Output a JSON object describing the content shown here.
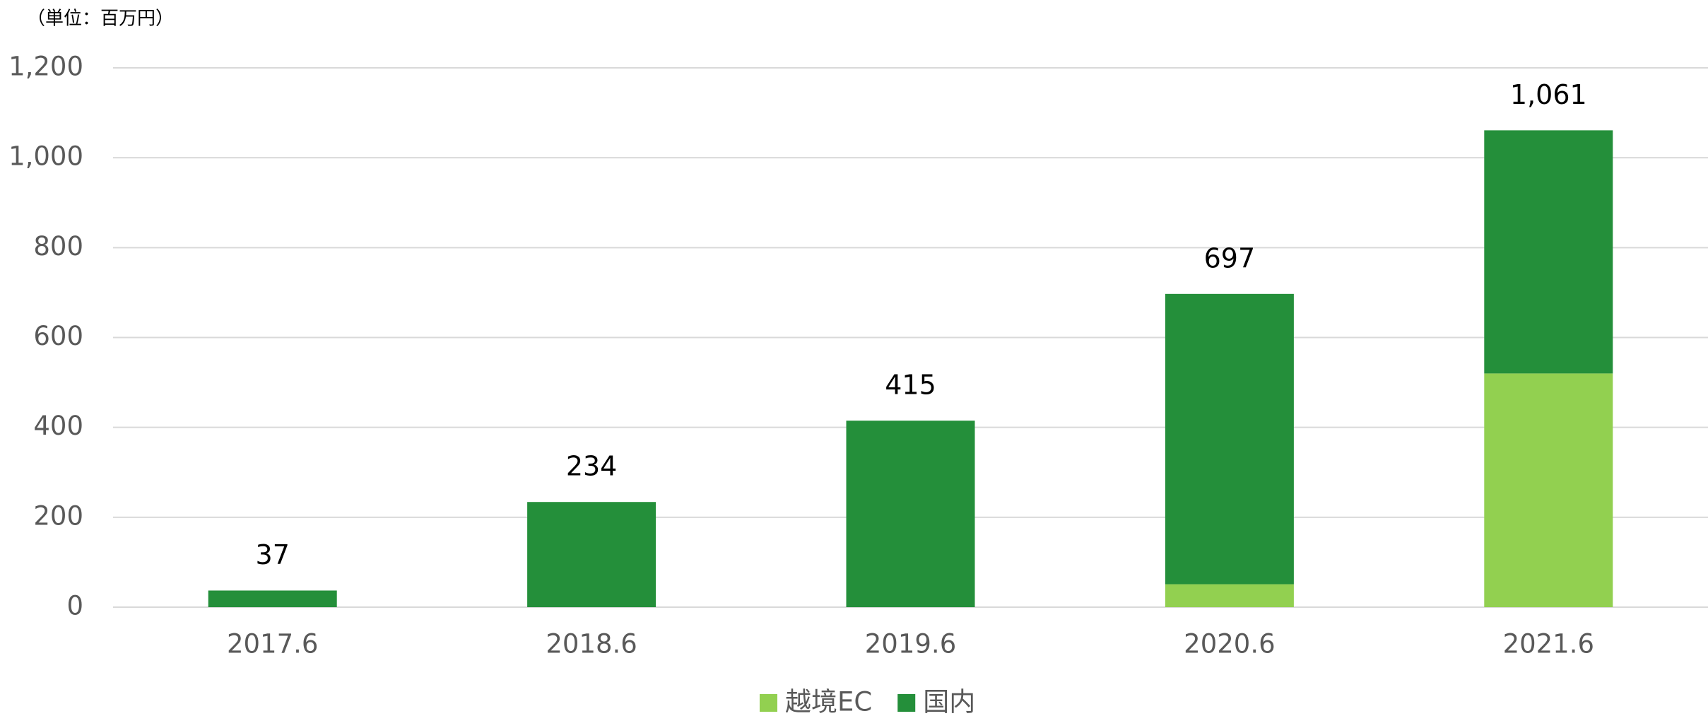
{
  "chart_data": {
    "type": "stacked_bar",
    "unit_label": "（単位：百万円）",
    "categories": [
      "2017.6",
      "2018.6",
      "2019.6",
      "2020.6",
      "2021.6"
    ],
    "series": [
      {
        "name": "越境EC",
        "color": "#92d050",
        "values": [
          0,
          0,
          0,
          51,
          520
        ]
      },
      {
        "name": "国内",
        "color": "#248f3a",
        "values": [
          37,
          234,
          415,
          646,
          541
        ]
      }
    ],
    "totals": [
      37,
      234,
      415,
      697,
      1061
    ],
    "total_labels": [
      "37",
      "234",
      "415",
      "697",
      "1,061"
    ],
    "ylim": [
      0,
      1200
    ],
    "yticks": [
      0,
      200,
      400,
      600,
      800,
      {
        "value": 1000,
        "label": "1,000"
      },
      {
        "value": 1200,
        "label": "1,200"
      }
    ],
    "grid": true,
    "legend": "bottom"
  }
}
